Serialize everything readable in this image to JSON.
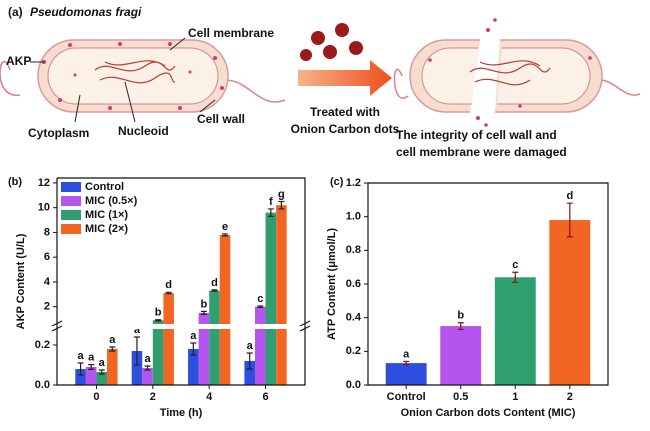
{
  "diagram": {
    "panel": "(a)",
    "organism": "Pseudomonas fragi",
    "labels": {
      "akp": "AKP",
      "membrane": "Cell membrane",
      "cytoplasm": "Cytoplasm",
      "nucleoid": "Nucleoid",
      "wall": "Cell wall"
    },
    "treatment": [
      "Treated with",
      "Onion Carbon dots"
    ],
    "result": [
      "The integrity of cell wall and",
      "cell membrane were damaged"
    ]
  },
  "chart_data": [
    {
      "type": "bar",
      "panel": "(b)",
      "x_label": "Time (h)",
      "y_label": "AKP Content (U/L)",
      "categories": [
        "0",
        "2",
        "4",
        "6"
      ],
      "ylim": [
        0,
        12.4
      ],
      "ybreak": [
        0.28,
        0.6
      ],
      "yticks": [
        {
          "value": 0,
          "label": "0.0"
        },
        0.2,
        2,
        4,
        6,
        8,
        10,
        12
      ],
      "series": [
        {
          "name": "Control",
          "color": "#2d4fe0",
          "values": [
            0.08,
            0.17,
            0.18,
            0.12
          ],
          "errors": [
            0.03,
            0.07,
            0.03,
            0.04
          ],
          "labels": [
            "a",
            "a",
            "a",
            "a"
          ]
        },
        {
          "name": "MIC (0.5×)",
          "color": "#b455ee",
          "values": [
            0.09,
            0.085,
            1.5,
            2.0
          ],
          "errors": [
            0.012,
            0.01,
            0.12,
            0.06
          ],
          "labels": [
            "a",
            "a",
            "b",
            "c"
          ]
        },
        {
          "name": "MIC (1×)",
          "color": "#2f9f6f",
          "values": [
            0.065,
            0.9,
            3.3,
            9.6
          ],
          "errors": [
            0.01,
            0.05,
            0.06,
            0.3
          ],
          "labels": [
            "a",
            "b",
            "d",
            "f"
          ]
        },
        {
          "name": "MIC (2×)",
          "color": "#f26522",
          "values": [
            0.18,
            3.1,
            7.8,
            10.2
          ],
          "errors": [
            0.01,
            0.06,
            0.08,
            0.3
          ],
          "labels": [
            "a",
            "d",
            "e",
            "g"
          ]
        }
      ]
    },
    {
      "type": "bar",
      "panel": "(c)",
      "x_label": "Onion Carbon dots Content (MIC)",
      "y_label": "ATP Content (μmol/L)",
      "categories": [
        "Control",
        "0.5",
        "1",
        "2"
      ],
      "values": [
        0.13,
        0.35,
        0.64,
        0.98
      ],
      "errors": [
        0.01,
        0.02,
        0.03,
        0.1
      ],
      "labels": [
        "a",
        "b",
        "c",
        "d"
      ],
      "colors": [
        "#2d4fe0",
        "#b455ee",
        "#2f9f6f",
        "#f26522"
      ],
      "ylim": [
        0,
        1.2
      ],
      "yticks": [
        {
          "value": 0,
          "label": "0.0"
        },
        0.2,
        0.4,
        0.6,
        0.8,
        {
          "value": 1,
          "label": "1.0"
        },
        1.2
      ]
    }
  ]
}
